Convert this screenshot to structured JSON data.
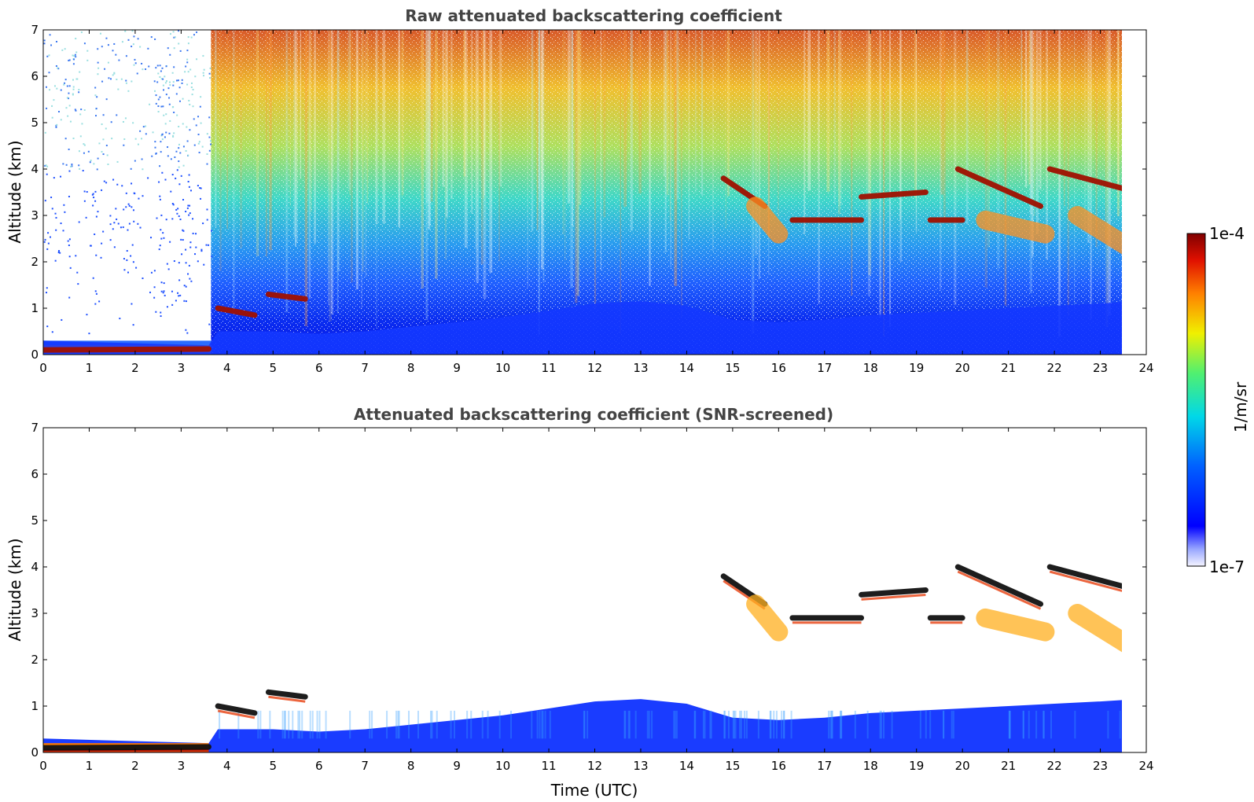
{
  "figure": {
    "colorbar": {
      "label": "1/m/sr",
      "min_label": "1e-7",
      "max_label": "1e-4",
      "scale": "log",
      "colormap": [
        "#ffffff",
        "#0000ff",
        "#00bfff",
        "#00ff80",
        "#ffff00",
        "#ff8000",
        "#ff0000",
        "#8b0000"
      ]
    }
  },
  "chart_data": [
    {
      "type": "heatmap",
      "title": "Raw attenuated backscattering coefficient",
      "xlabel": "",
      "ylabel": "Altitude (km)",
      "xlim": [
        0,
        24
      ],
      "ylim": [
        0,
        7
      ],
      "x_ticks": [
        "0",
        "1",
        "2",
        "3",
        "4",
        "5",
        "6",
        "7",
        "8",
        "9",
        "10",
        "11",
        "12",
        "13",
        "14",
        "15",
        "16",
        "17",
        "18",
        "19",
        "20",
        "21",
        "22",
        "23",
        "24"
      ],
      "y_ticks": [
        "0",
        "1",
        "2",
        "3",
        "4",
        "5",
        "6",
        "7"
      ],
      "data_end_time": 23.8,
      "features": {
        "boundary_layer_top": [
          [
            0,
            0.3
          ],
          [
            3.6,
            0.2
          ],
          [
            3.8,
            0.5
          ],
          [
            5,
            0.5
          ],
          [
            6,
            0.45
          ],
          [
            7,
            0.5
          ],
          [
            8,
            0.6
          ],
          [
            9,
            0.7
          ],
          [
            10,
            0.8
          ],
          [
            11,
            0.95
          ],
          [
            12,
            1.1
          ],
          [
            13,
            1.15
          ],
          [
            14,
            1.05
          ],
          [
            15,
            0.75
          ],
          [
            16,
            0.7
          ],
          [
            17,
            0.75
          ],
          [
            18,
            0.85
          ],
          [
            19,
            0.9
          ],
          [
            20,
            0.95
          ],
          [
            21,
            1.0
          ],
          [
            22,
            1.05
          ],
          [
            23,
            1.1
          ],
          [
            23.8,
            1.15
          ]
        ],
        "cloud_layers": [
          {
            "x": [
              0.0,
              3.6
            ],
            "y": [
              0.1,
              0.12
            ],
            "level": "high"
          },
          {
            "x": [
              3.8,
              4.6
            ],
            "y": [
              1.0,
              0.85
            ],
            "level": "high"
          },
          {
            "x": [
              4.9,
              5.7
            ],
            "y": [
              1.3,
              1.2
            ],
            "level": "high"
          },
          {
            "x": [
              14.8,
              15.7
            ],
            "y": [
              3.8,
              3.2
            ],
            "level": "high"
          },
          {
            "x": [
              15.5,
              16.0
            ],
            "y": [
              3.2,
              2.6
            ],
            "level": "mid"
          },
          {
            "x": [
              16.3,
              17.8
            ],
            "y": [
              2.9,
              2.9
            ],
            "level": "high"
          },
          {
            "x": [
              17.8,
              19.2
            ],
            "y": [
              3.4,
              3.5
            ],
            "level": "high"
          },
          {
            "x": [
              19.3,
              20.0
            ],
            "y": [
              2.9,
              2.9
            ],
            "level": "high"
          },
          {
            "x": [
              19.9,
              21.7
            ],
            "y": [
              4.0,
              3.2
            ],
            "level": "high"
          },
          {
            "x": [
              20.5,
              21.8
            ],
            "y": [
              2.9,
              2.6
            ],
            "level": "mid"
          },
          {
            "x": [
              21.9,
              23.8
            ],
            "y": [
              4.0,
              3.5
            ],
            "level": "high"
          },
          {
            "x": [
              22.5,
              23.8
            ],
            "y": [
              3.0,
              2.2
            ],
            "level": "mid"
          }
        ]
      }
    },
    {
      "type": "heatmap",
      "title": "Attenuated backscattering coefficient (SNR-screened)",
      "xlabel": "Time (UTC)",
      "ylabel": "Altitude (km)",
      "xlim": [
        0,
        24
      ],
      "ylim": [
        0,
        7
      ],
      "x_ticks": [
        "0",
        "1",
        "2",
        "3",
        "4",
        "5",
        "6",
        "7",
        "8",
        "9",
        "10",
        "11",
        "12",
        "13",
        "14",
        "15",
        "16",
        "17",
        "18",
        "19",
        "20",
        "21",
        "22",
        "23",
        "24"
      ],
      "y_ticks": [
        "0",
        "1",
        "2",
        "3",
        "4",
        "5",
        "6",
        "7"
      ],
      "data_end_time": 23.8,
      "screened_out": "background above boundary layer (white)"
    }
  ]
}
